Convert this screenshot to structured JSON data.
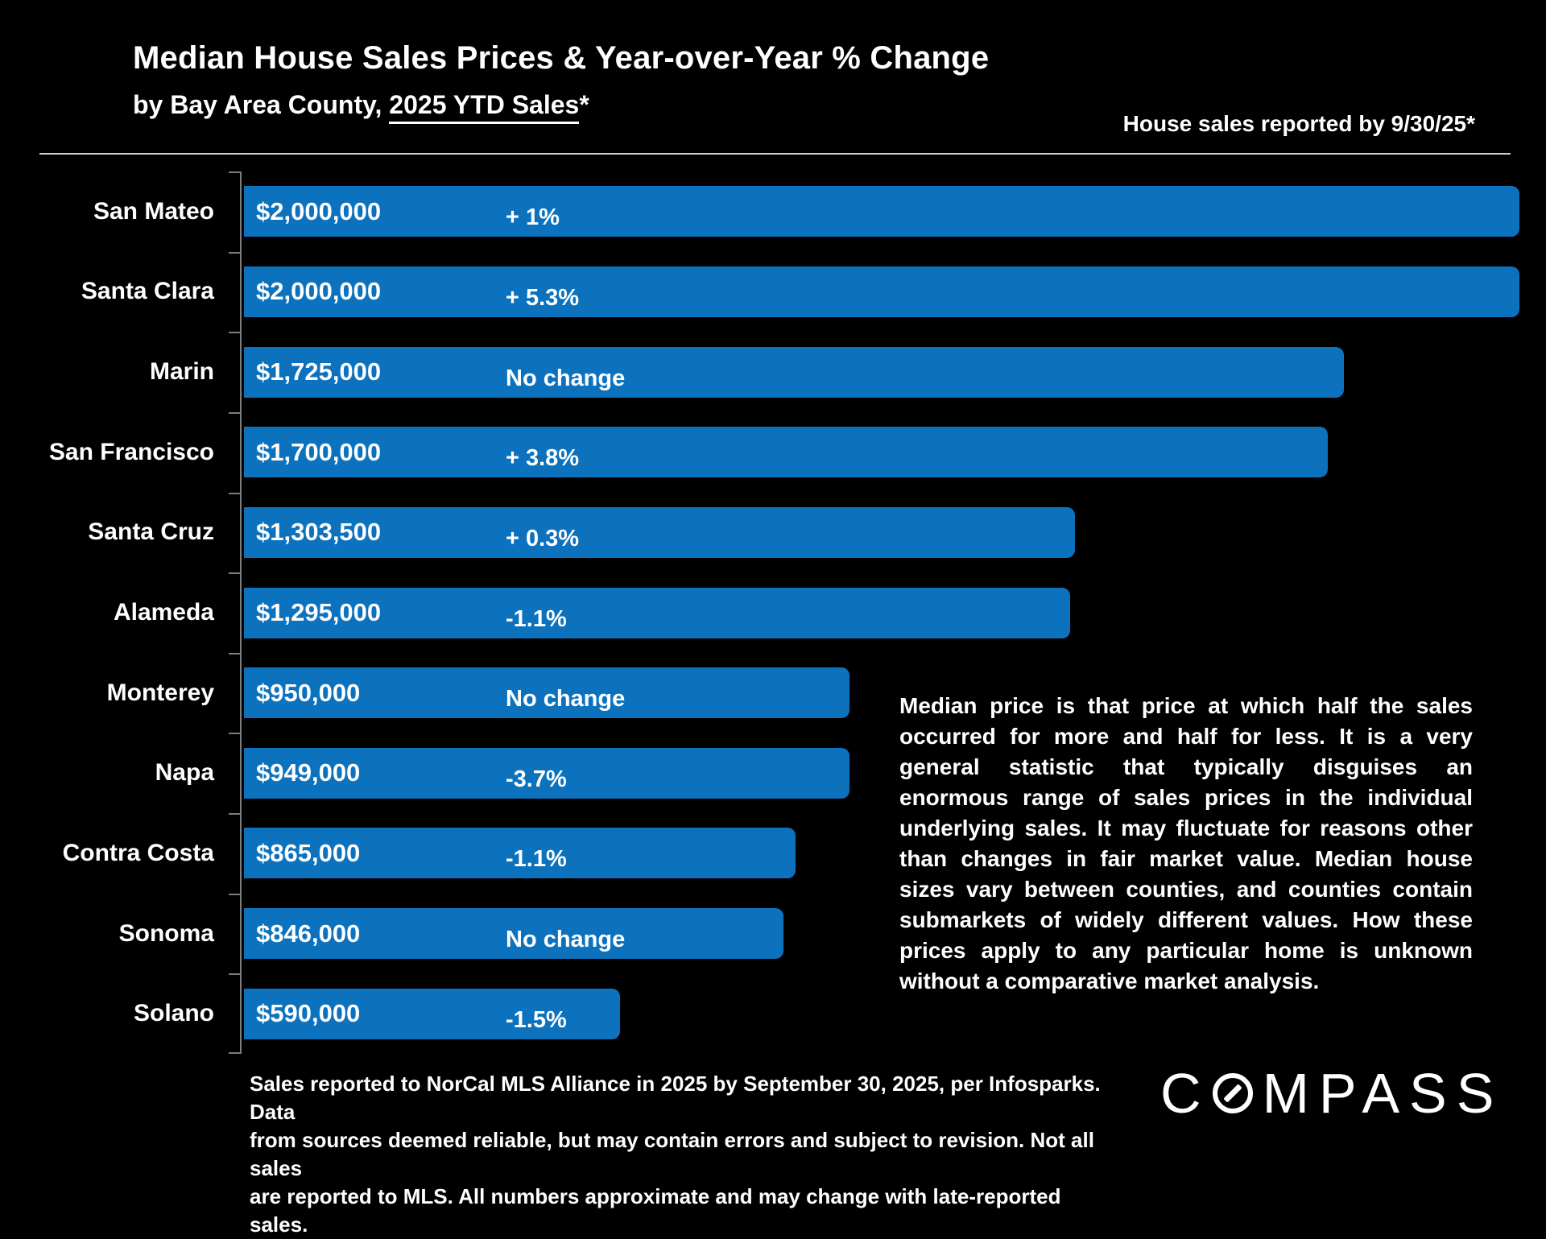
{
  "chart_data": {
    "type": "bar",
    "orientation": "horizontal",
    "title": "Median House Sales Prices & Year-over-Year % Change",
    "subtitle_prefix": "by Bay Area County, ",
    "subtitle_underlined": "2025 YTD Sales",
    "subtitle_suffix": "*",
    "right_note": "House sales reported by 9/30/25*",
    "xlim": [
      0,
      2000000
    ],
    "grid": false,
    "bar_color": "#0d72be",
    "categories": [
      "San Mateo",
      "Santa Clara",
      "Marin",
      "San Francisco",
      "Santa Cruz",
      "Alameda",
      "Monterey",
      "Napa",
      "Contra Costa",
      "Sonoma",
      "Solano"
    ],
    "series": [
      {
        "name": "Median house sales price (USD), 2025 YTD",
        "values": [
          2000000,
          2000000,
          1725000,
          1700000,
          1303500,
          1295000,
          950000,
          949000,
          865000,
          846000,
          590000
        ]
      }
    ],
    "price_labels": [
      "$2,000,000",
      "$2,000,000",
      "$1,725,000",
      "$1,700,000",
      "$1,303,500",
      "$1,295,000",
      "$950,000",
      "$949,000",
      "$865,000",
      "$846,000",
      "$590,000"
    ],
    "change_labels": [
      "+ 1%",
      "+ 5.3%",
      "No change",
      "+ 3.8%",
      "+ 0.3%",
      "-1.1%",
      "No change",
      "-3.7%",
      "-1.1%",
      "No change",
      "-1.5%"
    ]
  },
  "side_note": "Median price is that price at which half the sales occurred for more and half for less. It is a very general statistic that typically disguises an enormous range of sales prices in the individual underlying sales. It may fluctuate for reasons other than changes in fair market value. Median house sizes vary between counties, and counties contain submarkets of widely different values. How these prices apply to any particular home is unknown without a comparative market analysis.",
  "footer": {
    "lines": [
      "Sales reported to NorCal MLS Alliance in 2025 by September 30, 2025, per Infosparks. Data",
      "from sources deemed reliable, but may contain errors and subject to revision. Not all sales",
      "are reported to MLS. All numbers approximate and may change with late-reported sales."
    ]
  },
  "logo": {
    "part1": "C",
    "part2": "MPASS",
    "name": "COMPASS"
  }
}
